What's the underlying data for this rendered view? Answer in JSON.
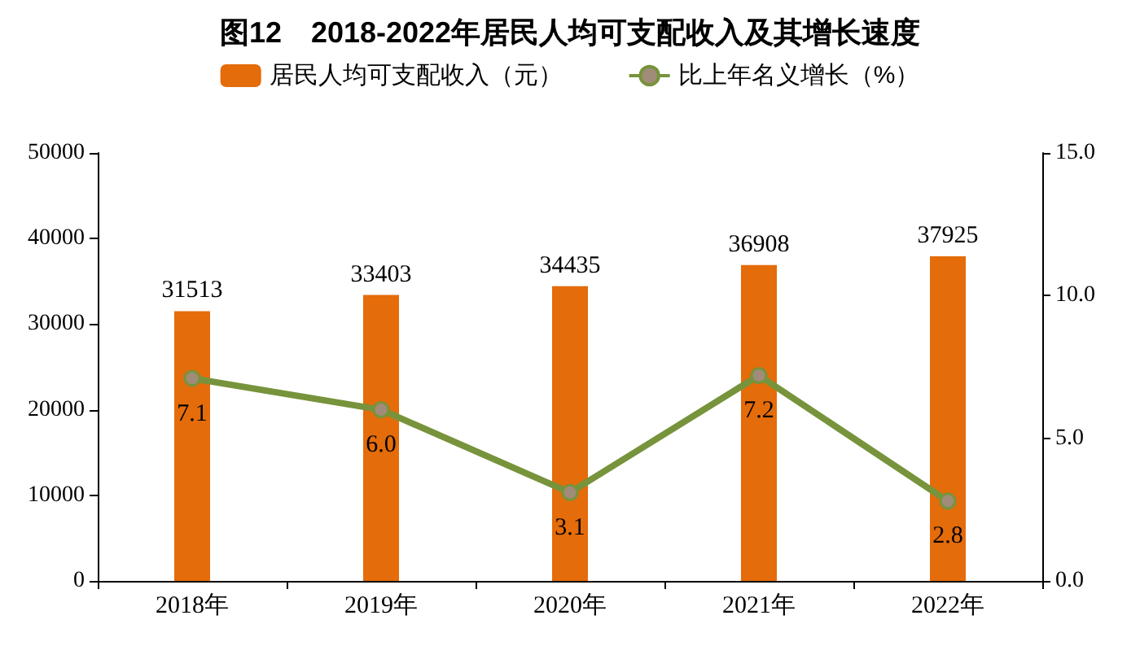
{
  "chart_data": {
    "type": "bar",
    "title": "图12　2018-2022年居民人均可支配收入及其增长速度",
    "categories": [
      "2018年",
      "2019年",
      "2020年",
      "2021年",
      "2022年"
    ],
    "series": [
      {
        "name": "居民人均可支配收入（元）",
        "color": "#e46c0a",
        "values": [
          31513,
          33403,
          34435,
          36908,
          37925
        ],
        "value_labels": [
          "31513",
          "33403",
          "34435",
          "36908",
          "37925"
        ]
      },
      {
        "name": "比上年名义增长（%）",
        "type": "line",
        "axis": "y2",
        "color": "#77933c",
        "values": [
          7.1,
          6.0,
          3.1,
          7.2,
          2.8
        ],
        "value_labels": [
          "7.1",
          "6.0",
          "3.1",
          "7.2",
          "2.8"
        ]
      }
    ],
    "ylim": [
      0,
      50000
    ],
    "yticks": [
      0,
      10000,
      20000,
      30000,
      40000,
      50000
    ],
    "y2lim": [
      0,
      15
    ],
    "y2ticks": [
      {
        "value": 0,
        "label": "0.0"
      },
      {
        "value": 5,
        "label": "5.0"
      },
      {
        "value": 10,
        "label": "10.0"
      },
      {
        "value": 15,
        "label": "15.0"
      }
    ],
    "marker": "circle",
    "grid": false,
    "legend": "top"
  }
}
